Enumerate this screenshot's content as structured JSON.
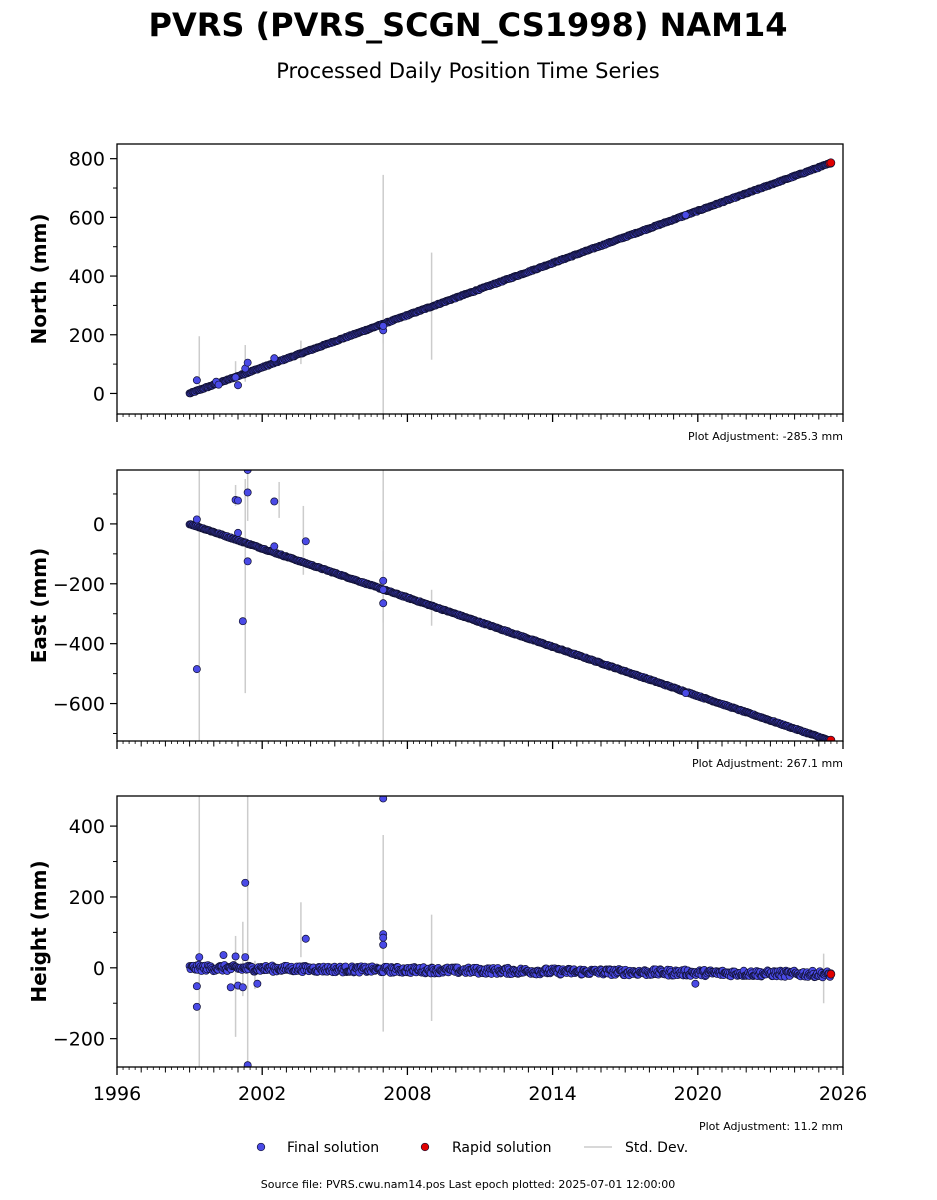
{
  "header": {
    "title": "PVRS (PVRS_SCGN_CS1998) NAM14",
    "subtitle": "Processed Daily Position Time Series"
  },
  "footer": {
    "source": "Source file: PVRS.cwu.nam14.pos  Last epoch plotted: 2025-07-01 12:00:00"
  },
  "legend": {
    "items": [
      {
        "label": "Final solution",
        "color": "#4a4ae6",
        "kind": "dot"
      },
      {
        "label": "Rapid solution",
        "color": "#e00000",
        "kind": "dot"
      },
      {
        "label": "Std. Dev.",
        "color": "#cccccc",
        "kind": "line"
      }
    ]
  },
  "chart_data": [
    {
      "type": "scatter",
      "ylabel": "North (mm)",
      "adjustment": "Plot Adjustment: -285.3 mm",
      "xlim": [
        1996,
        2026
      ],
      "ylim": [
        -70,
        850
      ],
      "yticks": [
        0,
        200,
        400,
        600,
        800
      ],
      "trend": {
        "x_start": 1999.0,
        "x_end": 2025.5,
        "y_start": 0,
        "y_end": 785
      },
      "rapid": [
        [
          2025.45,
          784
        ],
        [
          2025.5,
          786
        ]
      ],
      "outliers": [
        [
          1999.3,
          45
        ],
        [
          2000.1,
          40
        ],
        [
          2000.2,
          30
        ],
        [
          2000.9,
          55
        ],
        [
          2001.0,
          28
        ],
        [
          2001.3,
          85
        ],
        [
          2001.4,
          105
        ],
        [
          2002.5,
          120
        ],
        [
          2007.0,
          215
        ],
        [
          2007.0,
          230
        ],
        [
          2019.5,
          608
        ]
      ],
      "std_bars": [
        [
          1999.4,
          0,
          195
        ],
        [
          2000.9,
          30,
          110
        ],
        [
          2001.3,
          40,
          165
        ],
        [
          2003.6,
          100,
          180
        ],
        [
          2007.0,
          -70,
          745
        ],
        [
          2007.0,
          170,
          310
        ],
        [
          2009.0,
          115,
          480
        ]
      ],
      "grid": false
    },
    {
      "type": "scatter",
      "ylabel": "East (mm)",
      "adjustment": "Plot Adjustment: 267.1 mm",
      "xlim": [
        1996,
        2026
      ],
      "ylim": [
        -725,
        180
      ],
      "yticks": [
        -600,
        -400,
        -200,
        0
      ],
      "trend": {
        "x_start": 1999.0,
        "x_end": 2025.5,
        "y_start": 0,
        "y_end": -725
      },
      "rapid": [
        [
          2025.5,
          -722
        ]
      ],
      "outliers": [
        [
          1999.3,
          -485
        ],
        [
          1999.3,
          15
        ],
        [
          2000.9,
          80
        ],
        [
          2001.0,
          78
        ],
        [
          2001.0,
          -30
        ],
        [
          2001.2,
          -325
        ],
        [
          2001.4,
          180
        ],
        [
          2001.4,
          105
        ],
        [
          2001.4,
          -125
        ],
        [
          2002.5,
          75
        ],
        [
          2002.5,
          -75
        ],
        [
          2003.8,
          -58
        ],
        [
          2007.0,
          -190
        ],
        [
          2007.0,
          -265
        ],
        [
          2007.0,
          -220
        ],
        [
          2019.5,
          -565
        ]
      ],
      "std_bars": [
        [
          1999.4,
          -725,
          180
        ],
        [
          2000.9,
          60,
          130
        ],
        [
          2001.3,
          -565,
          150
        ],
        [
          2001.4,
          10,
          180
        ],
        [
          2002.7,
          20,
          140
        ],
        [
          2003.7,
          -170,
          60
        ],
        [
          2007.0,
          -725,
          180
        ],
        [
          2007.0,
          -330,
          -90
        ],
        [
          2009.0,
          -340,
          -220
        ]
      ],
      "grid": false
    },
    {
      "type": "scatter",
      "ylabel": "Height (mm)",
      "adjustment": "Plot Adjustment: 11.2 mm",
      "xlim": [
        1996,
        2026
      ],
      "ylim": [
        -280,
        485
      ],
      "yticks": [
        -200,
        0,
        200,
        400
      ],
      "xticks": [
        1996,
        2002,
        2008,
        2014,
        2020,
        2026
      ],
      "trend": {
        "x_start": 1999.0,
        "x_end": 2025.5,
        "y_start": 0,
        "y_end": -18
      },
      "rapid": [
        [
          2025.5,
          -18
        ]
      ],
      "outliers": [
        [
          1999.3,
          -110
        ],
        [
          1999.3,
          -52
        ],
        [
          1999.4,
          30
        ],
        [
          2000.4,
          36
        ],
        [
          2000.7,
          -55
        ],
        [
          2000.9,
          32
        ],
        [
          2001.0,
          -50
        ],
        [
          2001.2,
          -55
        ],
        [
          2001.3,
          240
        ],
        [
          2001.3,
          30
        ],
        [
          2001.4,
          -275
        ],
        [
          2001.8,
          -45
        ],
        [
          2003.8,
          82
        ],
        [
          2007.0,
          478
        ],
        [
          2007.0,
          95
        ],
        [
          2007.0,
          85
        ],
        [
          2007.0,
          65
        ],
        [
          2019.9,
          -45
        ]
      ],
      "std_bars": [
        [
          1999.4,
          -280,
          485
        ],
        [
          2000.9,
          -195,
          90
        ],
        [
          2001.2,
          -80,
          130
        ],
        [
          2001.4,
          -280,
          485
        ],
        [
          2001.7,
          -60,
          20
        ],
        [
          2003.6,
          30,
          185
        ],
        [
          2007.0,
          -180,
          375
        ],
        [
          2007.0,
          -90,
          220
        ],
        [
          2009.0,
          -150,
          150
        ],
        [
          2025.2,
          -100,
          40
        ]
      ],
      "grid": false
    }
  ]
}
